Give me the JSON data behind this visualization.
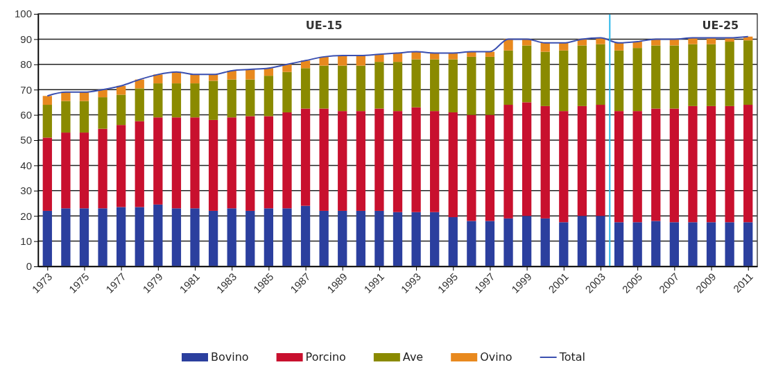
{
  "chart_data": {
    "type": "bar",
    "stacked": true,
    "x": [
      1973,
      1974,
      1975,
      1976,
      1977,
      1978,
      1979,
      1980,
      1981,
      1982,
      1983,
      1984,
      1985,
      1986,
      1987,
      1988,
      1989,
      1990,
      1991,
      1992,
      1993,
      1994,
      1995,
      1996,
      1997,
      1998,
      1999,
      2000,
      2001,
      2002,
      2003,
      2004,
      2005,
      2006,
      2007,
      2008,
      2009,
      2010,
      2011
    ],
    "xlim": [
      1972.5,
      2011.5
    ],
    "xticks": [
      1973,
      1975,
      1977,
      1979,
      1981,
      1983,
      1985,
      1987,
      1989,
      1991,
      1993,
      1995,
      1997,
      1999,
      2001,
      2003,
      2005,
      2007,
      2009,
      2011
    ],
    "ylim": [
      0,
      100
    ],
    "yticks": [
      0,
      10,
      20,
      30,
      40,
      50,
      60,
      70,
      80,
      90,
      100
    ],
    "grid": "y",
    "legend": "bottom",
    "series": [
      {
        "name": "Bovino",
        "color": "#2b3f9e",
        "values": [
          22,
          23,
          23,
          23,
          23.5,
          23.5,
          24.5,
          23,
          23,
          22,
          23,
          22,
          23,
          23,
          24,
          22,
          22,
          22,
          22,
          21.5,
          21.5,
          21.5,
          19.5,
          18,
          18,
          19,
          20,
          19,
          17.5,
          20,
          20,
          17.5,
          17.5,
          18,
          17.5,
          17.5,
          17.5,
          17.5,
          17.5
        ]
      },
      {
        "name": "Porcino",
        "color": "#c8102e",
        "values": [
          29,
          30,
          30,
          31.5,
          32.5,
          34,
          34.5,
          36,
          36,
          36,
          36,
          37.5,
          36.5,
          38,
          38.5,
          40.5,
          39.5,
          39.5,
          40.5,
          40,
          41.5,
          40,
          41.5,
          42,
          42,
          45,
          45,
          44.5,
          44,
          43.5,
          44,
          44,
          44,
          44.5,
          45,
          46,
          46,
          46,
          46.5
        ]
      },
      {
        "name": "Ave",
        "color": "#8a8a00",
        "values": [
          13,
          12.5,
          12.5,
          12.5,
          12,
          13,
          13.5,
          13.5,
          13.5,
          15.5,
          15,
          14.5,
          16,
          16,
          16,
          17,
          18,
          18,
          18.5,
          19.5,
          19,
          20.5,
          21,
          23,
          23,
          21.5,
          22.5,
          21.5,
          24,
          24,
          24,
          24,
          25,
          25,
          25,
          24.5,
          24.5,
          25.5,
          25.5
        ]
      },
      {
        "name": "Ovino",
        "color": "#e8891e",
        "values": [
          3.5,
          3.5,
          3.5,
          3,
          3.5,
          3.5,
          3.5,
          4.5,
          3.5,
          2.5,
          3.5,
          4,
          3,
          3,
          3,
          3.5,
          4,
          4,
          3,
          3.5,
          3,
          2.5,
          2.5,
          2,
          2,
          4.5,
          2.5,
          3.5,
          3,
          2.5,
          2.5,
          3,
          2.5,
          2.5,
          2.5,
          2.5,
          2.5,
          1.5,
          1.5
        ]
      },
      {
        "name": "Total",
        "type": "line",
        "color": "#3a4fb0",
        "marker": "none",
        "line_style": "solid",
        "values": [
          67.5,
          69,
          69,
          70,
          71.5,
          74,
          76,
          77,
          76,
          76,
          77.5,
          78,
          78.5,
          80,
          81.5,
          83,
          83.5,
          83.5,
          84,
          84.5,
          85,
          84.5,
          84.5,
          85,
          85,
          90,
          90,
          88.5,
          88.5,
          90,
          90.5,
          88.5,
          89,
          90,
          90,
          90.5,
          90.5,
          90.5,
          91
        ]
      }
    ],
    "ref_lines": [
      {
        "axis": "x",
        "value": 2003.5,
        "color": "#29b6e8"
      }
    ],
    "annotations": [
      "UE-15",
      "UE-25"
    ]
  }
}
